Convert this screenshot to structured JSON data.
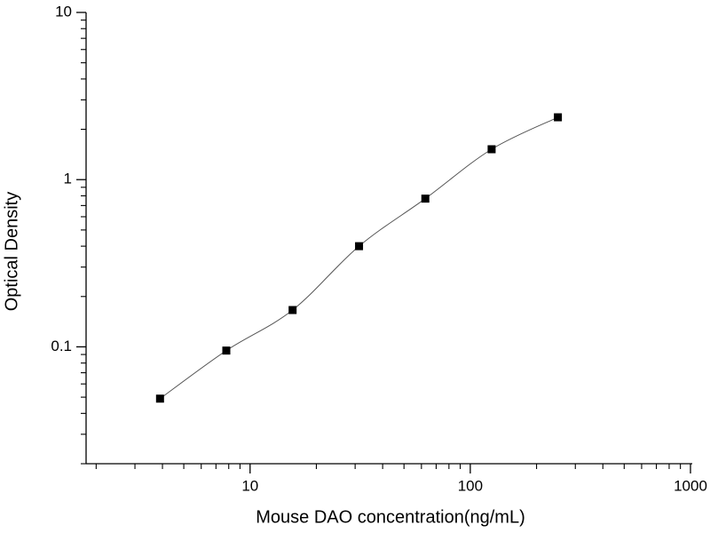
{
  "chart_data": {
    "type": "scatter",
    "x_label": "Mouse DAO concentration(ng/mL)",
    "y_label": "Optical Density",
    "series": [
      {
        "x": [
          3.9,
          7.8,
          15.6,
          31.25,
          62.5,
          125,
          250
        ],
        "values": [
          0.049,
          0.095,
          0.166,
          0.4,
          0.77,
          1.52,
          2.36
        ],
        "color": "#000000"
      }
    ],
    "xscale": "log",
    "yscale": "log",
    "xlim": [
      1.8,
      1000
    ],
    "ylim": [
      0.02,
      10
    ],
    "xticks": [
      10,
      100,
      1000
    ],
    "yticks": [
      0.1,
      1,
      10
    ],
    "xminor_ticks": [
      2,
      3,
      4,
      5,
      6,
      7,
      8,
      9,
      20,
      30,
      40,
      50,
      60,
      70,
      80,
      90,
      200,
      300,
      400,
      500,
      600,
      700,
      800,
      900
    ],
    "yminor_ticks": [
      0.02,
      0.03,
      0.04,
      0.05,
      0.06,
      0.07,
      0.08,
      0.09,
      0.2,
      0.3,
      0.4,
      0.5,
      0.6,
      0.7,
      0.8,
      0.9,
      2,
      3,
      4,
      5,
      6,
      7,
      8,
      9
    ],
    "fit_line": true,
    "grid": false
  }
}
